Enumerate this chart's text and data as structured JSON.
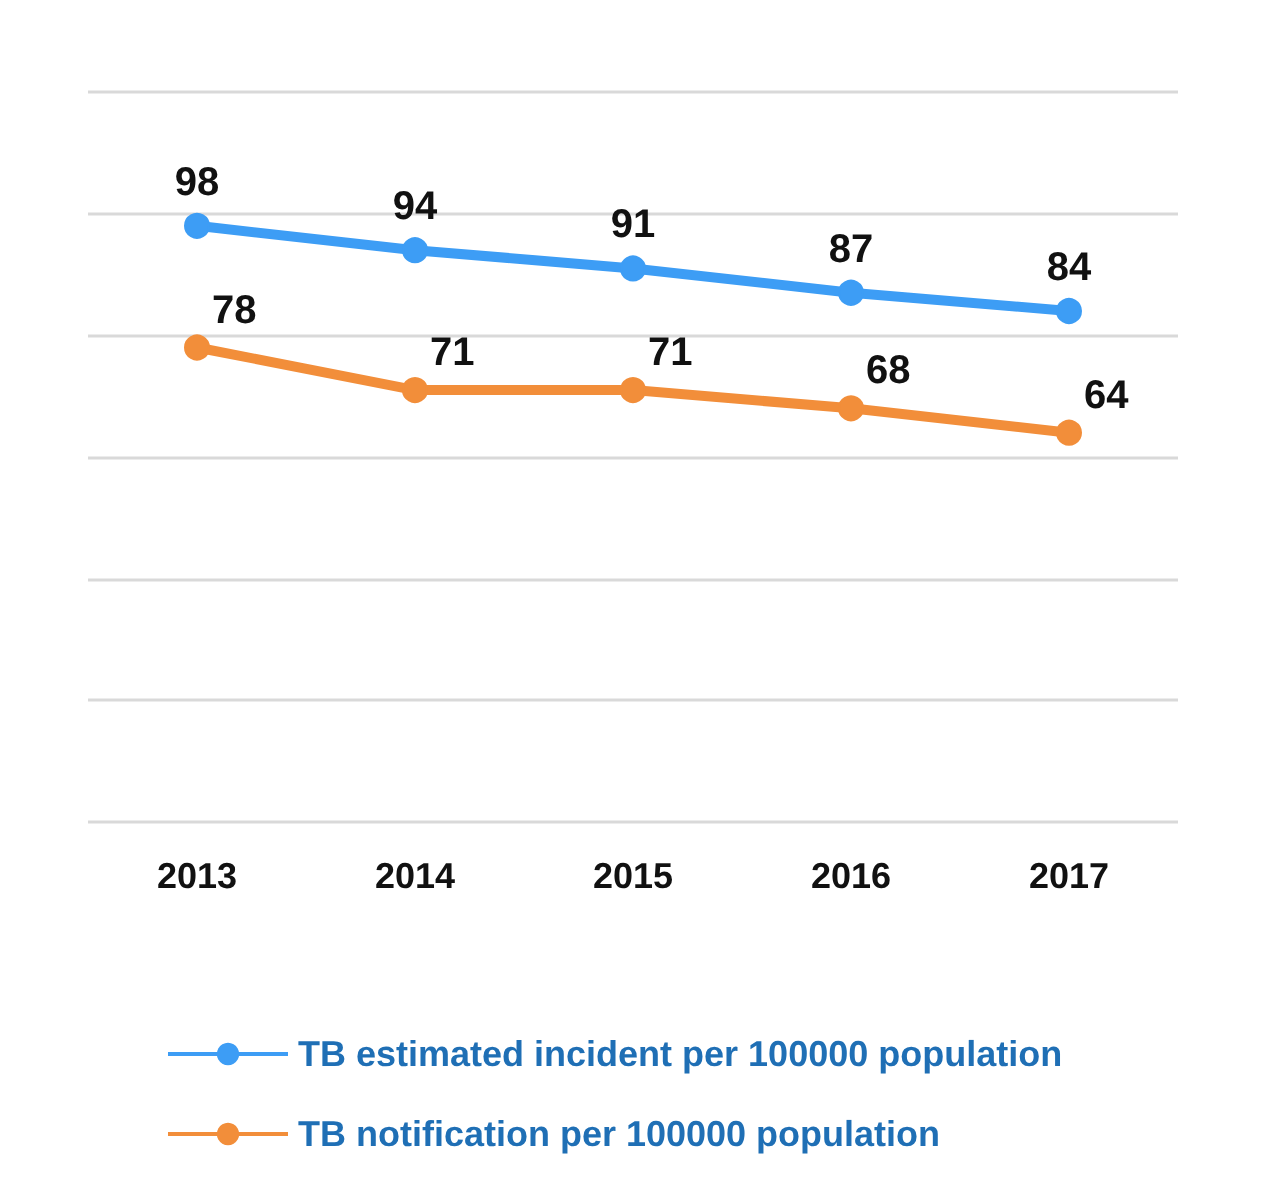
{
  "chart_data": {
    "type": "line",
    "categories": [
      "2013",
      "2014",
      "2015",
      "2016",
      "2017"
    ],
    "series": [
      {
        "name": "TB estimated incident per 100000 population",
        "color": "#3d9df5",
        "values": [
          98,
          94,
          91,
          87,
          84
        ]
      },
      {
        "name": "TB notification per 100000 population",
        "color": "#f28e3a",
        "values": [
          78,
          71,
          71,
          68,
          64
        ]
      }
    ],
    "ylim": [
      0,
      120
    ],
    "yticks": [
      {
        "value": 0,
        "label": null
      },
      {
        "value": 20,
        "label": null
      },
      {
        "value": 40,
        "label": null
      },
      {
        "value": 60,
        "label": null
      },
      {
        "value": 80,
        "label": null
      },
      {
        "value": 100,
        "label": null
      },
      {
        "value": 120,
        "label": null
      }
    ],
    "tick_labels": "x",
    "grid": "y",
    "legend": "bottom",
    "marker": "circle",
    "line_style": "solid",
    "data_labels": true
  }
}
